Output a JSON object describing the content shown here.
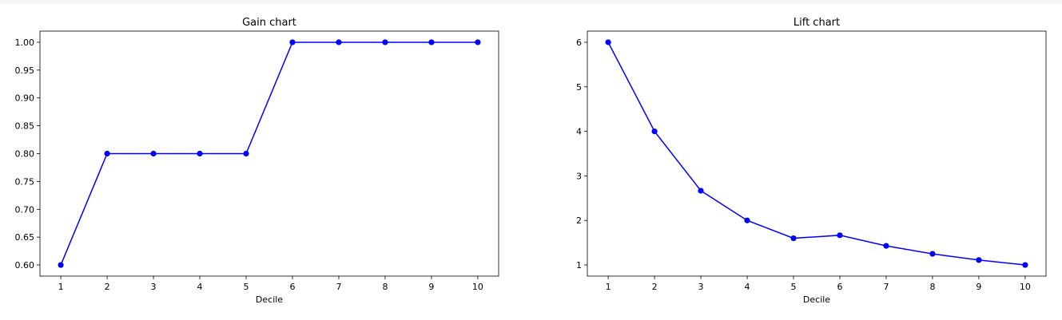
{
  "chart_data": [
    {
      "type": "line",
      "title": "Gain chart",
      "xlabel": "Decile",
      "ylabel": "",
      "x": [
        1,
        2,
        3,
        4,
        5,
        6,
        7,
        8,
        9,
        10
      ],
      "xticks": [
        "1",
        "2",
        "3",
        "4",
        "5",
        "6",
        "7",
        "8",
        "9",
        "10"
      ],
      "yticks": [
        "0.60",
        "0.65",
        "0.70",
        "0.75",
        "0.80",
        "0.85",
        "0.90",
        "0.95",
        "1.00"
      ],
      "ylim": [
        0.58,
        1.02
      ],
      "xlim": [
        0.55,
        10.45
      ],
      "series": [
        {
          "values": [
            0.6,
            0.8,
            0.8,
            0.8,
            0.8,
            1.0,
            1.0,
            1.0,
            1.0,
            1.0
          ],
          "color": "#0000ff",
          "marker": "circle"
        }
      ],
      "grid": false
    },
    {
      "type": "line",
      "title": "Lift chart",
      "xlabel": "Decile",
      "ylabel": "",
      "x": [
        1,
        2,
        3,
        4,
        5,
        6,
        7,
        8,
        9,
        10
      ],
      "xticks": [
        "1",
        "2",
        "3",
        "4",
        "5",
        "6",
        "7",
        "8",
        "9",
        "10"
      ],
      "yticks": [
        "1",
        "2",
        "3",
        "4",
        "5",
        "6"
      ],
      "ylim": [
        0.75,
        6.25
      ],
      "xlim": [
        0.55,
        10.45
      ],
      "series": [
        {
          "values": [
            6.0,
            4.0,
            2.667,
            2.0,
            1.6,
            1.667,
            1.429,
            1.25,
            1.111,
            1.0
          ],
          "color": "#0000ff",
          "marker": "circle"
        }
      ],
      "grid": false
    }
  ]
}
